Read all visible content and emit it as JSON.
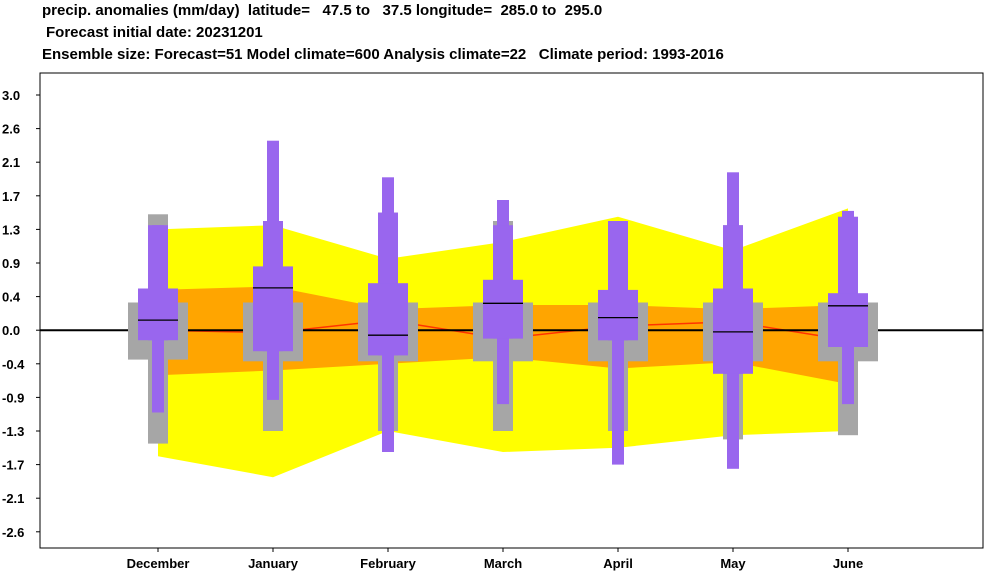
{
  "title_lines": [
    "precip. anomalies (mm/day)  latitude=   47.5 to   37.5 longitude=  285.0 to  295.0",
    "Forecast initial date: 20231201",
    "Ensemble size: Forecast=51 Model climate=600 Analysis climate=22   Climate period: 1993-2016"
  ],
  "colors": {
    "outer_band": "#ffff00",
    "inner_band": "#ffa500",
    "climate_box": "#a6a6a6",
    "forecast_box": "#9966ee",
    "median_line": "#ff3300",
    "zero_line": "#000000"
  },
  "chart_data": {
    "type": "box",
    "categories": [
      "December",
      "January",
      "February",
      "March",
      "April",
      "May",
      "June"
    ],
    "y_ticks": [
      "3.0",
      "2.6",
      "2.1",
      "1.7",
      "1.3",
      "0.9",
      "0.4",
      "0.0",
      "-0.4",
      "-0.9",
      "-1.3",
      "-1.7",
      "-2.1",
      "-2.6"
    ],
    "ylim": [
      -2.6,
      3.0
    ],
    "model_climate": {
      "p5": [
        -1.6,
        -1.85,
        -1.3,
        -1.55,
        -1.5,
        -1.35,
        -1.3
      ],
      "p25": [
        -0.57,
        -0.5,
        -0.4,
        -0.32,
        -0.47,
        -0.38,
        -0.7
      ],
      "p50": [
        0.0,
        -0.03,
        0.12,
        -0.1,
        0.05,
        0.1,
        -0.12
      ],
      "p75": [
        0.5,
        0.55,
        0.25,
        0.3,
        0.3,
        0.25,
        0.3
      ],
      "p95": [
        1.3,
        1.35,
        0.95,
        1.15,
        1.45,
        1.05,
        1.55
      ]
    },
    "analysis_climate": {
      "min": [
        -1.45,
        -1.3,
        -1.3,
        -1.3,
        -1.3,
        -1.4,
        -1.35
      ],
      "p25": [
        -0.35,
        -0.37,
        -0.37,
        -0.37,
        -0.37,
        -0.37,
        -0.37
      ],
      "p75": [
        0.33,
        0.33,
        0.33,
        0.33,
        0.33,
        0.33,
        0.33
      ],
      "max": [
        1.48,
        1.4,
        1.5,
        1.4,
        1.38,
        1.35,
        1.45
      ]
    },
    "forecast": {
      "min": [
        -1.08,
        -0.93,
        -1.55,
        -0.98,
        -1.7,
        -1.75,
        -0.98
      ],
      "p10": [
        -0.12,
        -0.25,
        -0.3,
        -0.1,
        -0.12,
        -0.55,
        -0.2
      ],
      "p25": [
        -0.12,
        -0.25,
        -0.3,
        -0.1,
        -0.12,
        -0.55,
        -0.2
      ],
      "median": [
        0.12,
        0.53,
        -0.06,
        0.32,
        0.15,
        -0.02,
        0.29
      ],
      "p75": [
        0.52,
        0.85,
        0.6,
        0.65,
        0.5,
        0.52,
        0.45
      ],
      "p90": [
        1.35,
        1.4,
        1.5,
        1.35,
        1.4,
        1.35,
        1.45
      ],
      "max": [
        1.35,
        2.42,
        1.92,
        1.65,
        1.4,
        1.98,
        1.52
      ]
    }
  }
}
